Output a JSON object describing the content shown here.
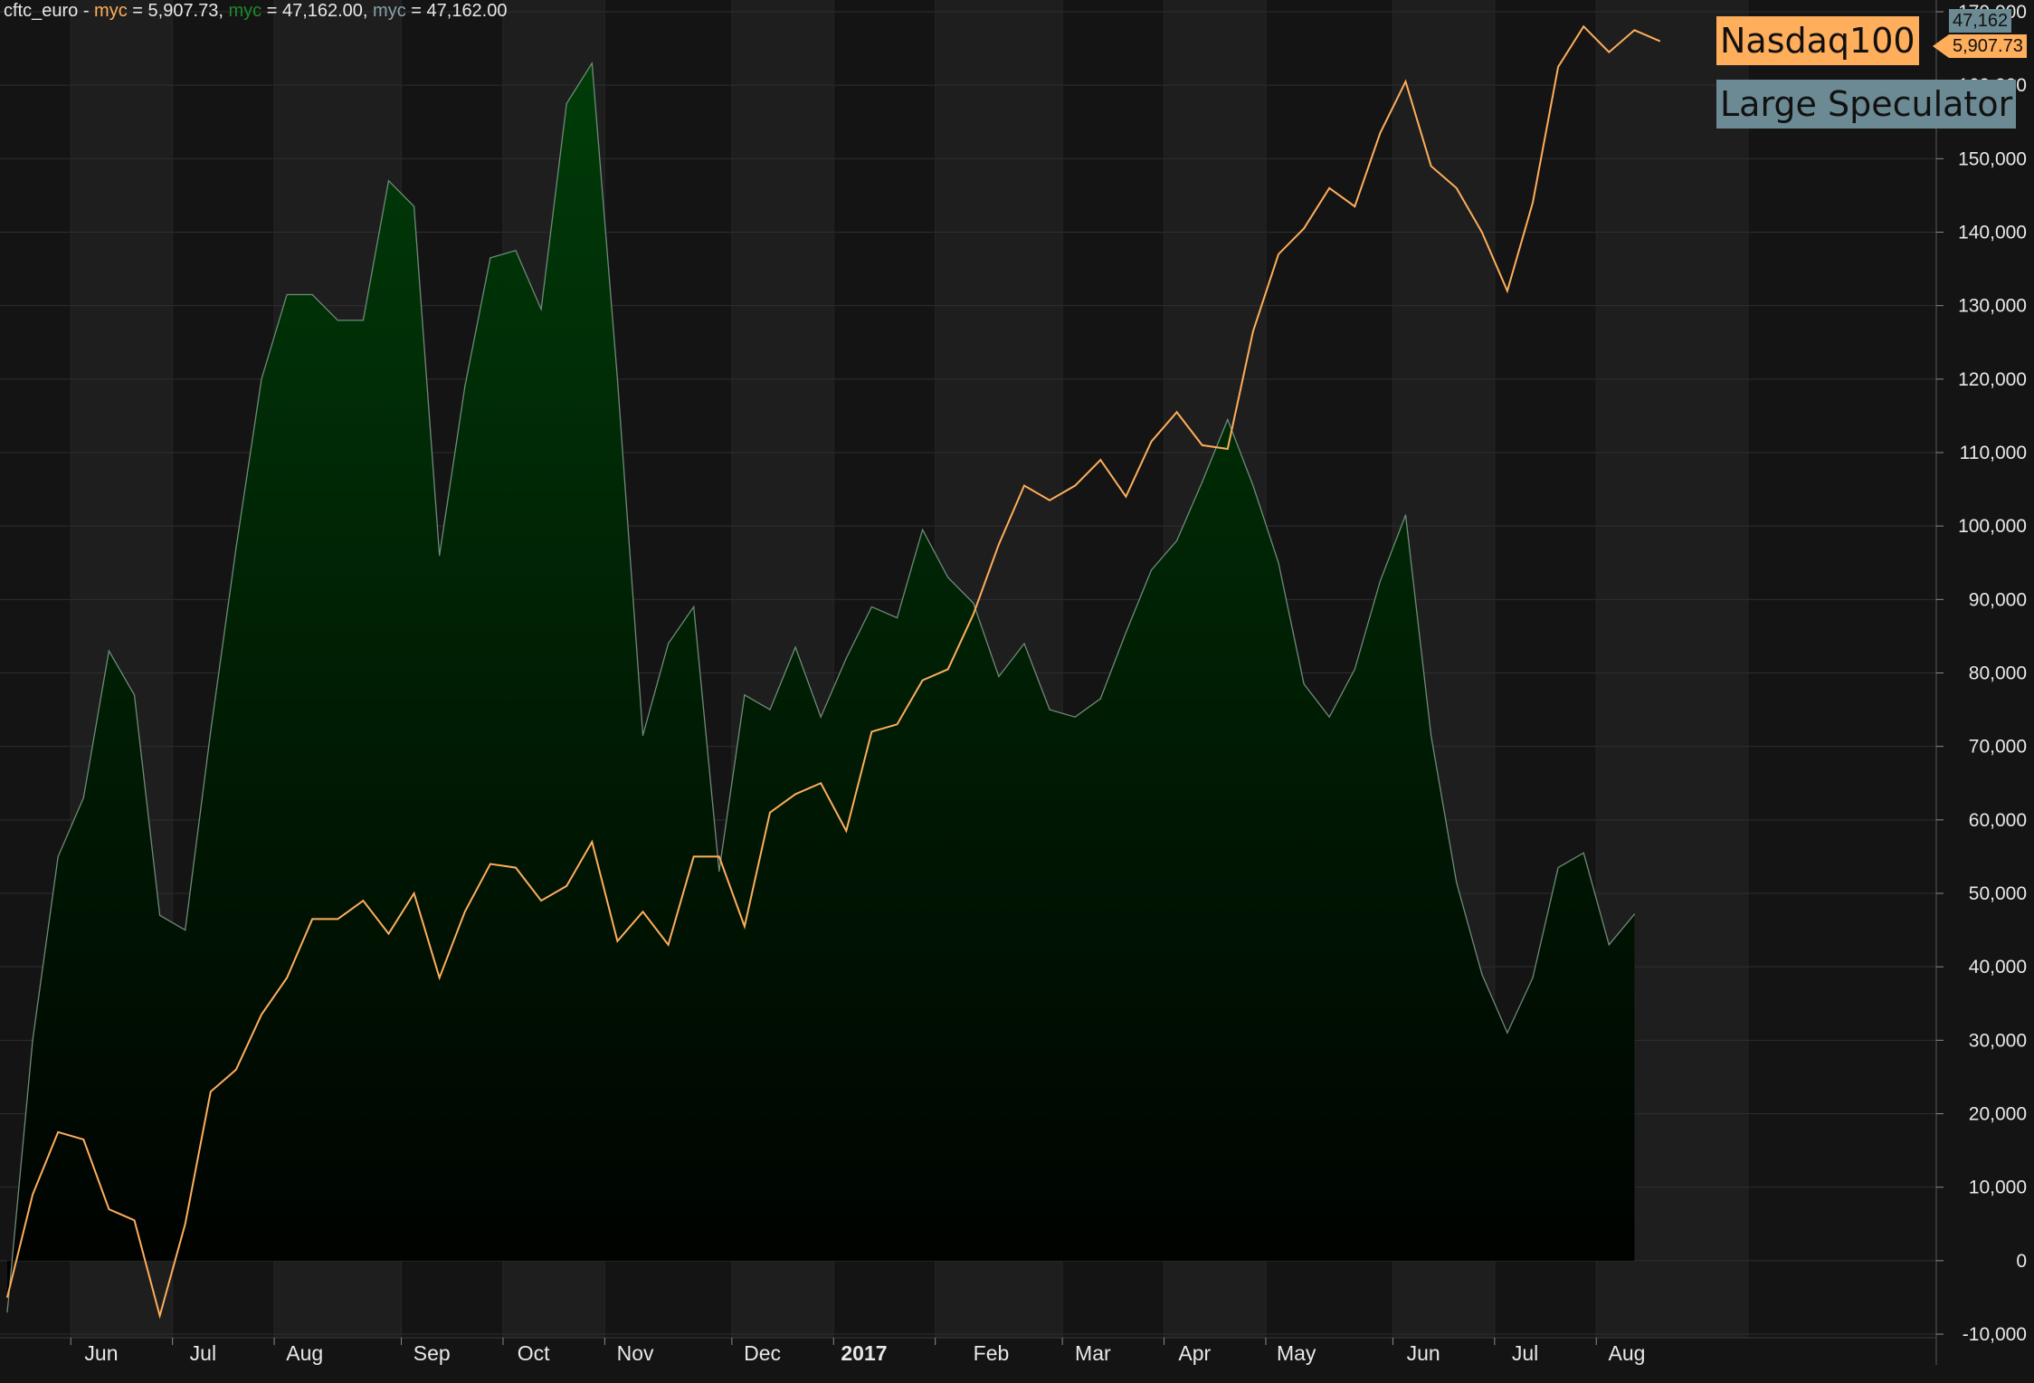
{
  "header": {
    "symbol": "cftc_euro",
    "separator": " - ",
    "series_items": [
      {
        "label": "myc",
        "eq": " = ",
        "value": "5,907.73",
        "color": "#ffae5b",
        "trail": ", "
      },
      {
        "label": "myc",
        "eq": " = ",
        "value": "47,162.00",
        "color": "#1c8a2a",
        "trail": ", "
      },
      {
        "label": "myc",
        "eq": " = ",
        "value": "47,162.00",
        "color": "#8aa0ad",
        "trail": ""
      }
    ]
  },
  "legend": {
    "nasdaq_label": "Nasdaq100",
    "nasdaq_color": "#ffae5b",
    "speculator_label": "Large Speculator",
    "speculator_color": "#6c8a94"
  },
  "value_tags": {
    "myc_value": "47,162",
    "nasdaq_value": "5,907.73"
  },
  "colors": {
    "background": "#141414",
    "band_light": "#1e1e1e",
    "band_dark": "#141414",
    "area_top": "#003c08",
    "area_bottom": "#000000",
    "area_line": "#6f8a78",
    "nasdaq_line": "#ffae5b",
    "axis_text": "#e8e8e8",
    "grid": "#2e2e2e"
  },
  "chart_data": {
    "type": "area",
    "y_axis": {
      "min": -10000,
      "max": 170000,
      "ticks": [
        -10000,
        0,
        10000,
        20000,
        30000,
        40000,
        50000,
        60000,
        70000,
        80000,
        90000,
        100000,
        110000,
        120000,
        130000,
        140000,
        150000,
        160000,
        170000
      ],
      "tick_labels": [
        "-10,000",
        "0",
        "10,000",
        "20,000",
        "30,000",
        "40,000",
        "50,000",
        "60,000",
        "70,000",
        "80,000",
        "90,000",
        "100,000",
        "110,000",
        "120,000",
        "130,000",
        "140,000",
        "150,000",
        "160,000",
        "170,000"
      ]
    },
    "x_axis": {
      "month_labels": [
        "Jun",
        "Jul",
        "Aug",
        "Sep",
        "Oct",
        "Nov",
        "Dec",
        "2017",
        "Feb",
        "Mar",
        "Apr",
        "May",
        "Jun",
        "Jul",
        "Aug"
      ],
      "month_start_index": [
        3,
        7,
        11,
        16,
        20,
        24,
        29,
        33,
        37,
        42,
        46,
        50,
        55,
        59,
        63
      ],
      "label_index": [
        3.7,
        7.7,
        11.7,
        16.7,
        20.7,
        24.7,
        29.7,
        33.7,
        38.7,
        42.7,
        46.7,
        50.7,
        55.7,
        59.7,
        63.7
      ]
    },
    "series": [
      {
        "name": "Large Speculator",
        "style": "area",
        "values": [
          -7000,
          30000,
          55000,
          63000,
          83000,
          77000,
          47000,
          45000,
          72000,
          97000,
          120000,
          131500,
          131500,
          128000,
          128000,
          147000,
          143500,
          96000,
          119000,
          136500,
          137500,
          129500,
          157500,
          163000,
          120000,
          71500,
          84000,
          89000,
          53000,
          77000,
          75000,
          83500,
          74000,
          82000,
          89000,
          87500,
          99500,
          93000,
          89500,
          79500,
          84000,
          75000,
          74000,
          76500,
          85500,
          94000,
          98000,
          106000,
          114500,
          105500,
          95000,
          78500,
          74000,
          80500,
          92500,
          101500,
          71500,
          51500,
          39000,
          31000,
          38500,
          53500,
          55500,
          43000,
          47162
        ]
      },
      {
        "name": "Nasdaq100",
        "style": "line",
        "values": [
          -5000,
          9000,
          17500,
          16500,
          7000,
          5500,
          -7500,
          5000,
          23000,
          26000,
          33500,
          38500,
          46500,
          46500,
          49000,
          44500,
          50000,
          38500,
          47500,
          54000,
          53500,
          49000,
          51000,
          57000,
          43500,
          47500,
          43000,
          55000,
          55000,
          45500,
          61000,
          63500,
          65000,
          58500,
          72000,
          73000,
          79000,
          80500,
          88000,
          97500,
          105500,
          103500,
          105500,
          109000,
          104000,
          111500,
          115500,
          111000,
          110500,
          126500,
          137000,
          140500,
          146000,
          143500,
          153500,
          160500,
          149000,
          146000,
          140000,
          132000,
          144000,
          162500,
          168000,
          164500,
          167500,
          166000
        ]
      }
    ]
  }
}
